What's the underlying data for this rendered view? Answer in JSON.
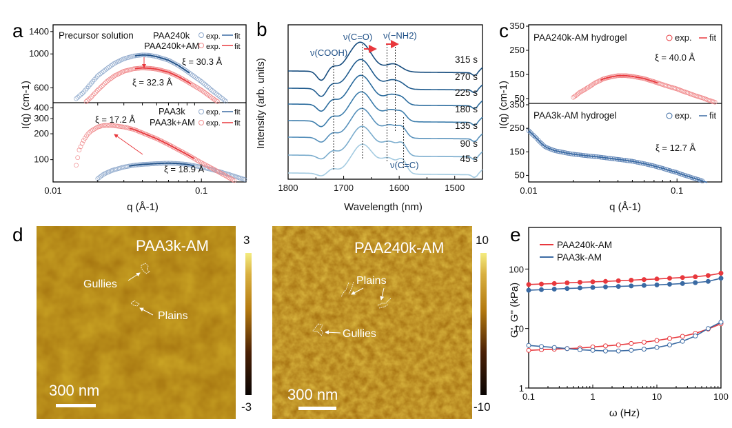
{
  "panels": {
    "a": "a",
    "b": "b",
    "c": "c",
    "d": "d",
    "e": "e"
  },
  "colors": {
    "blue": "#3a6aa3",
    "red": "#e8383d",
    "lightred": "#f08a8c",
    "lightblue": "#8fa9cc",
    "darkblue": "#1e4f86"
  },
  "chart_data": [
    {
      "id": "a",
      "type": "scatter",
      "title": "",
      "xlabel": "q (Å-1)",
      "ylabel": "I(q) (cm-1)",
      "xscale": "log",
      "xlim": [
        0.01,
        0.2
      ],
      "x_ticks": [
        "0.01",
        "0.1"
      ],
      "subplots": [
        {
          "name": "top",
          "annotation": "Precursor solution",
          "yscale": "log",
          "ylim": [
            480,
            1500
          ],
          "y_ticks": [
            "600",
            "1000",
            "1400"
          ],
          "legend": [
            {
              "label": "PAA240k",
              "exp": "exp.",
              "fit": "fit",
              "color": "#3a6aa3"
            },
            {
              "label": "PAA240k+AM",
              "exp": "exp.",
              "fit": "fit",
              "color": "#e8383d"
            }
          ],
          "labels": [
            "ξ = 30.3 Å",
            "ξ = 32.3 Å"
          ],
          "series": [
            {
              "name": "PAA240k",
              "x": [
                0.014,
                0.016,
                0.018,
                0.02,
                0.023,
                0.026,
                0.03,
                0.035,
                0.04,
                0.045,
                0.05,
                0.06,
                0.07,
                0.08,
                0.1,
                0.12,
                0.15,
                0.18
              ],
              "y": [
                500,
                560,
                640,
                720,
                800,
                870,
                930,
                970,
                985,
                980,
                960,
                910,
                840,
                770,
                660,
                570,
                480,
                420
              ]
            },
            {
              "name": "PAA240k+AM",
              "x": [
                0.016,
                0.018,
                0.02,
                0.023,
                0.026,
                0.03,
                0.035,
                0.04,
                0.045,
                0.05,
                0.06,
                0.07,
                0.08,
                0.1,
                0.12,
                0.15,
                0.17
              ],
              "y": [
                470,
                520,
                580,
                660,
                720,
                770,
                800,
                810,
                805,
                795,
                760,
                710,
                660,
                580,
                510,
                440,
                400
              ]
            }
          ]
        },
        {
          "name": "bottom",
          "yscale": "log",
          "ylim": [
            55,
            450
          ],
          "y_ticks": [
            "100",
            "200",
            "300",
            "400"
          ],
          "legend": [
            {
              "label": "PAA3k",
              "exp": "exp.",
              "fit": "fit",
              "color": "#3a6aa3"
            },
            {
              "label": "PAA3k+AM",
              "exp": "exp.",
              "fit": "fit",
              "color": "#e8383d"
            }
          ],
          "labels": [
            "ξ = 17.2 Å",
            "ξ = 18.9 Å"
          ],
          "series": [
            {
              "name": "PAA3k",
              "x": [
                0.02,
                0.022,
                0.025,
                0.03,
                0.035,
                0.04,
                0.05,
                0.06,
                0.07,
                0.08,
                0.1,
                0.12,
                0.15,
                0.2
              ],
              "y": [
                60,
                68,
                75,
                82,
                86,
                88,
                90,
                91,
                90,
                88,
                82,
                76,
                68,
                58
              ]
            },
            {
              "name": "PAA3k+AM",
              "x": [
                0.014,
                0.015,
                0.016,
                0.017,
                0.018,
                0.02,
                0.022,
                0.025,
                0.03,
                0.035,
                0.04,
                0.05,
                0.06,
                0.07,
                0.08,
                0.1,
                0.12,
                0.15,
                0.17
              ],
              "y": [
                70,
                130,
                165,
                195,
                215,
                240,
                250,
                250,
                240,
                225,
                205,
                175,
                150,
                130,
                115,
                92,
                78,
                63,
                56
              ]
            }
          ]
        }
      ]
    },
    {
      "id": "b",
      "type": "line",
      "xlabel": "Wavelength (nm)",
      "ylabel": "Intensity (arb. units)",
      "xlim": [
        1800,
        1450
      ],
      "x_ticks": [
        "1800",
        "1700",
        "1600",
        "1500"
      ],
      "series_labels": [
        "315 s",
        "270 s",
        "225 s",
        "180 s",
        "135 s",
        "90 s",
        "45 s"
      ],
      "annotations": [
        "ν(COOH)",
        "ν(C=O)",
        "ν(−NH2)",
        "ν(C=C)"
      ],
      "dashed_lines_nm": [
        1718,
        1666,
        1622,
        1607,
        1592
      ]
    },
    {
      "id": "c",
      "type": "scatter",
      "xlabel": "q (Å-1)",
      "ylabel": "I(q) (cm-1)",
      "xscale": "log",
      "xlim": [
        0.01,
        0.2
      ],
      "x_ticks": [
        "0.01",
        "0.1"
      ],
      "subplots": [
        {
          "name": "top",
          "annotation": "PAA240k-AM hydrogel",
          "ylim": [
            30,
            350
          ],
          "y_ticks": [
            "50",
            "150",
            "250",
            "350"
          ],
          "legend": {
            "exp": "exp.",
            "fit": "fit",
            "color": "#e8383d"
          },
          "label": "ξ = 40.0 Å",
          "series": {
            "x": [
              0.02,
              0.022,
              0.025,
              0.028,
              0.032,
              0.036,
              0.04,
              0.045,
              0.05,
              0.06,
              0.07,
              0.08,
              0.1,
              0.12,
              0.15,
              0.18
            ],
            "y": [
              55,
              75,
              95,
              115,
              132,
              140,
              145,
              145,
              142,
              133,
              120,
              108,
              90,
              72,
              52,
              35
            ]
          }
        },
        {
          "name": "bottom",
          "annotation": "PAA3k-AM hydrogel",
          "ylim": [
            20,
            350
          ],
          "y_ticks": [
            "50",
            "150",
            "250",
            "350"
          ],
          "legend": {
            "exp": "exp.",
            "fit": "fit",
            "color": "#3a6aa3"
          },
          "label": "ξ = 12.7 Å",
          "series": {
            "x": [
              0.01,
              0.011,
              0.012,
              0.013,
              0.015,
              0.018,
              0.02,
              0.025,
              0.03,
              0.04,
              0.05,
              0.06,
              0.07,
              0.08,
              0.1,
              0.12,
              0.14,
              0.16
            ],
            "y": [
              240,
              215,
              190,
              170,
              155,
              145,
              140,
              133,
              128,
              118,
              110,
              100,
              90,
              80,
              62,
              45,
              32,
              20
            ]
          }
        }
      ]
    },
    {
      "id": "e",
      "type": "line",
      "xlabel": "ω (Hz)",
      "ylabel": "G', G'' (kPa)",
      "xscale": "log",
      "yscale": "log",
      "xlim": [
        0.1,
        100
      ],
      "ylim": [
        1,
        500
      ],
      "x_ticks": [
        "0.1",
        "1",
        "10",
        "100"
      ],
      "y_ticks": [
        "1",
        "10",
        "100"
      ],
      "legend": [
        "PAA240k-AM",
        "PAA3k-AM"
      ],
      "x": [
        0.1,
        0.158,
        0.251,
        0.398,
        0.631,
        1,
        1.58,
        2.51,
        3.98,
        6.31,
        10,
        15.8,
        25.1,
        39.8,
        63.1,
        100
      ],
      "series": [
        {
          "name": "PAA240k-AM G'",
          "color": "#e8383d",
          "filled": true,
          "values": [
            55,
            56,
            57,
            58.5,
            60,
            61,
            62,
            63.5,
            65,
            66.5,
            68,
            70,
            72,
            74,
            78,
            85
          ]
        },
        {
          "name": "PAA3k-AM G'",
          "color": "#3a6aa3",
          "filled": true,
          "values": [
            44,
            45,
            46,
            47,
            48,
            49,
            50,
            51,
            52,
            53,
            54,
            55.5,
            57,
            59,
            62,
            70
          ]
        },
        {
          "name": "PAA240k-AM G''",
          "color": "#e8383d",
          "filled": false,
          "values": [
            4.3,
            4.4,
            4.5,
            4.6,
            4.7,
            4.9,
            5.1,
            5.3,
            5.6,
            5.9,
            6.3,
            6.8,
            7.4,
            8.3,
            9.8,
            12
          ]
        },
        {
          "name": "PAA3k-AM G''",
          "color": "#3a6aa3",
          "filled": false,
          "values": [
            5.2,
            5.0,
            4.8,
            4.6,
            4.4,
            4.3,
            4.2,
            4.2,
            4.3,
            4.5,
            4.8,
            5.3,
            6.1,
            7.5,
            10,
            12.8
          ]
        }
      ]
    }
  ],
  "afm": {
    "left": {
      "title": "PAA3k-AM",
      "labels": [
        "Gullies",
        "Plains"
      ],
      "scale_bar": "300 nm",
      "cbar_max": "3",
      "cbar_min": "-3"
    },
    "right": {
      "title": "PAA240k-AM",
      "labels": [
        "Plains",
        "Gullies"
      ],
      "scale_bar": "300 nm",
      "cbar_max": "10",
      "cbar_min": "-10"
    }
  }
}
